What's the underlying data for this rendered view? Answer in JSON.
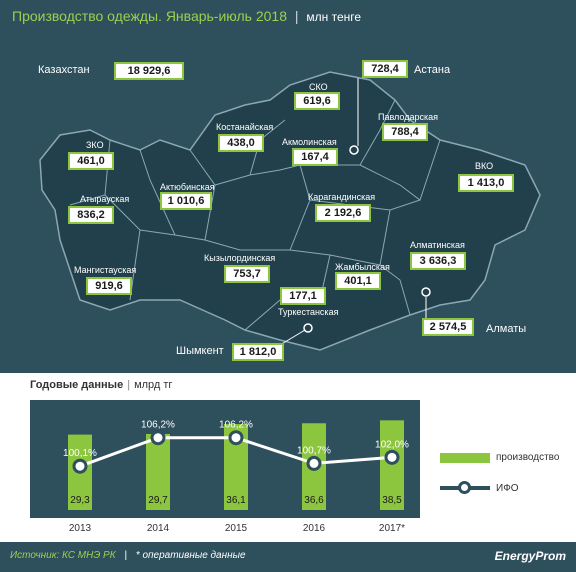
{
  "header": {
    "title": "Производство одежды. Январь-июль 2018",
    "separator": "|",
    "unit": "млн тенге"
  },
  "total": {
    "label": "Казахстан",
    "value": "18 929,6"
  },
  "regions": [
    {
      "key": "zko",
      "label": "ЗКО",
      "value": "461,0"
    },
    {
      "key": "atyrau",
      "label": "Атырауская",
      "value": "836,2"
    },
    {
      "key": "mangystau",
      "label": "Мангистауская",
      "value": "919,6"
    },
    {
      "key": "aktobe",
      "label": "Актюбинская",
      "value": "1 010,6"
    },
    {
      "key": "kostanay",
      "label": "Костанайская",
      "value": "438,0"
    },
    {
      "key": "sko",
      "label": "СКО",
      "value": "619,6"
    },
    {
      "key": "akmola",
      "label": "Акмолинская",
      "value": "167,4"
    },
    {
      "key": "pavlodar",
      "label": "Павлодарская",
      "value": "788,4"
    },
    {
      "key": "vko",
      "label": "ВКО",
      "value": "1 413,0"
    },
    {
      "key": "karaganda",
      "label": "Карагандинская",
      "value": "2 192,6"
    },
    {
      "key": "kyzylorda",
      "label": "Кызылординская",
      "value": "753,7"
    },
    {
      "key": "zhambyl",
      "label": "Жамбылская",
      "value": "401,1"
    },
    {
      "key": "almatyobl",
      "label": "Алматинская",
      "value": "3 636,3"
    },
    {
      "key": "turkestan",
      "label": "Туркестанская",
      "value": "177,1"
    }
  ],
  "cities": [
    {
      "key": "astana",
      "label": "Астана",
      "value": "728,4"
    },
    {
      "key": "almaty",
      "label": "Алматы",
      "value": "2 574,5"
    },
    {
      "key": "shymkent",
      "label": "Шымкент",
      "value": "1 812,0"
    }
  ],
  "annual_title": {
    "bold": "Годовые данные",
    "separator": "|",
    "unit": "млрд тг"
  },
  "legend": {
    "production": "производство",
    "ifo": "ИФО"
  },
  "footer": {
    "source": "Источник: КС МНЭ РК",
    "separator": "|",
    "note": "* оперативные данные",
    "logo": "EnergyProm"
  },
  "colors": {
    "background": "#2e4f5c",
    "accent": "#8cc63f",
    "title": "#9bd14e"
  },
  "chart_data": {
    "type": "bar",
    "categories": [
      "2013",
      "2014",
      "2015",
      "2016",
      "2017*"
    ],
    "series": [
      {
        "name": "производство",
        "type": "bar",
        "values": [
          29.3,
          29.7,
          36.1,
          36.6,
          38.5
        ],
        "labels": [
          "29,3",
          "29,7",
          "36,1",
          "36,6",
          "38,5"
        ]
      },
      {
        "name": "ИФО",
        "type": "line",
        "values": [
          100.1,
          106.2,
          106.2,
          100.7,
          102.0
        ],
        "labels": [
          "100,1%",
          "106,2%",
          "106,2%",
          "100,7%",
          "102,0%"
        ]
      }
    ],
    "title": "Годовые данные",
    "xlabel": "",
    "ylabel": "млрд тг",
    "ylim": [
      0,
      40
    ],
    "ifo_ylim": [
      95,
      110
    ]
  }
}
